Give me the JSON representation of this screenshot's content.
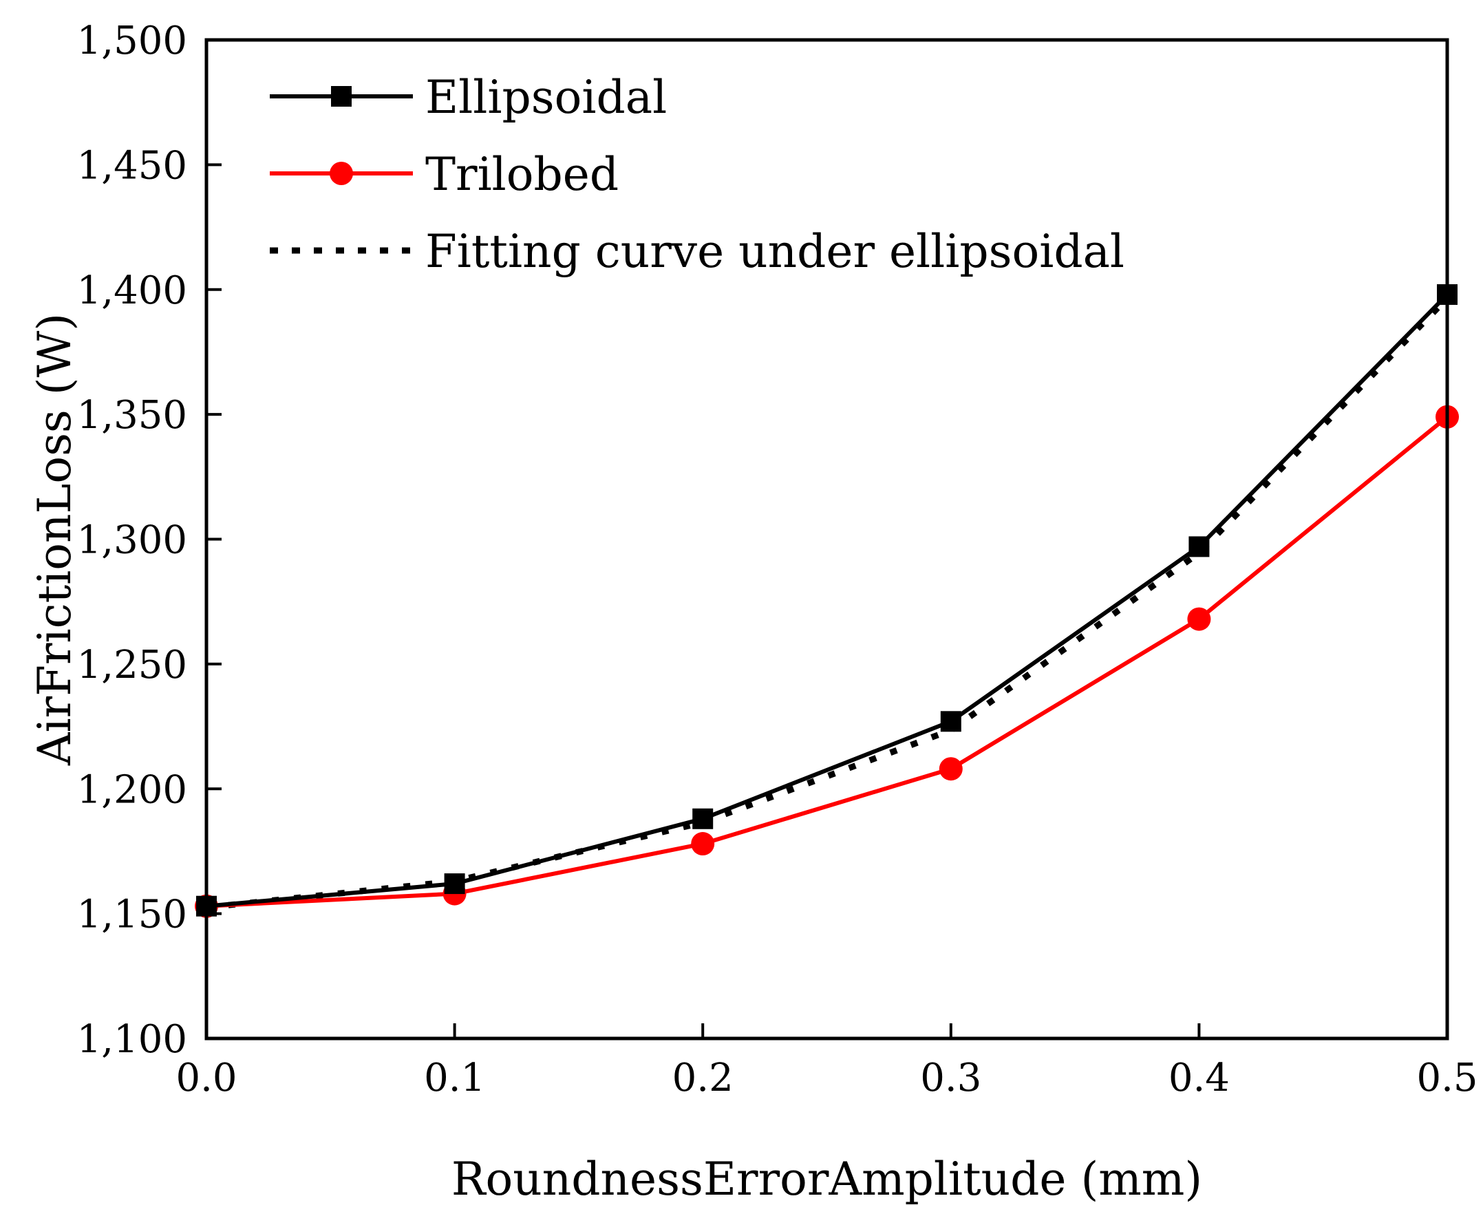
{
  "chart_data": {
    "type": "line",
    "title": "",
    "xlabel": "RoundnessErrorAmplitude (mm)",
    "ylabel": "AirFrictionLoss (W)",
    "xlim": [
      0.0,
      0.5
    ],
    "ylim": [
      1100,
      1500
    ],
    "xticks": [
      0.0,
      0.1,
      0.2,
      0.3,
      0.4,
      0.5
    ],
    "xtick_labels": [
      "0.0",
      "0.1",
      "0.2",
      "0.3",
      "0.4",
      "0.5"
    ],
    "yticks": [
      1100,
      1150,
      1200,
      1250,
      1300,
      1350,
      1400,
      1450,
      1500
    ],
    "ytick_labels": [
      "1,100",
      "1,150",
      "1,200",
      "1,250",
      "1,300",
      "1,350",
      "1,400",
      "1,450",
      "1,500"
    ],
    "grid": false,
    "legend_position": "top-left",
    "x": [
      0.0,
      0.1,
      0.2,
      0.3,
      0.4,
      0.5
    ],
    "series": [
      {
        "name": "Ellipsoidal",
        "values": [
          1153,
          1162,
          1188,
          1227,
          1297,
          1398
        ],
        "color": "#000000",
        "marker": "square",
        "linestyle": "solid"
      },
      {
        "name": "Trilobed",
        "values": [
          1153,
          1158,
          1178,
          1208,
          1268,
          1349
        ],
        "color": "#ff0000",
        "marker": "circle",
        "linestyle": "solid"
      },
      {
        "name": "Fitting curve under ellipsoidal",
        "values": [
          1152.5,
          1163.0,
          1186.5,
          1223.5,
          1294.5,
          1396.5
        ],
        "color": "#000000",
        "marker": "none",
        "linestyle": "dotted"
      }
    ]
  }
}
